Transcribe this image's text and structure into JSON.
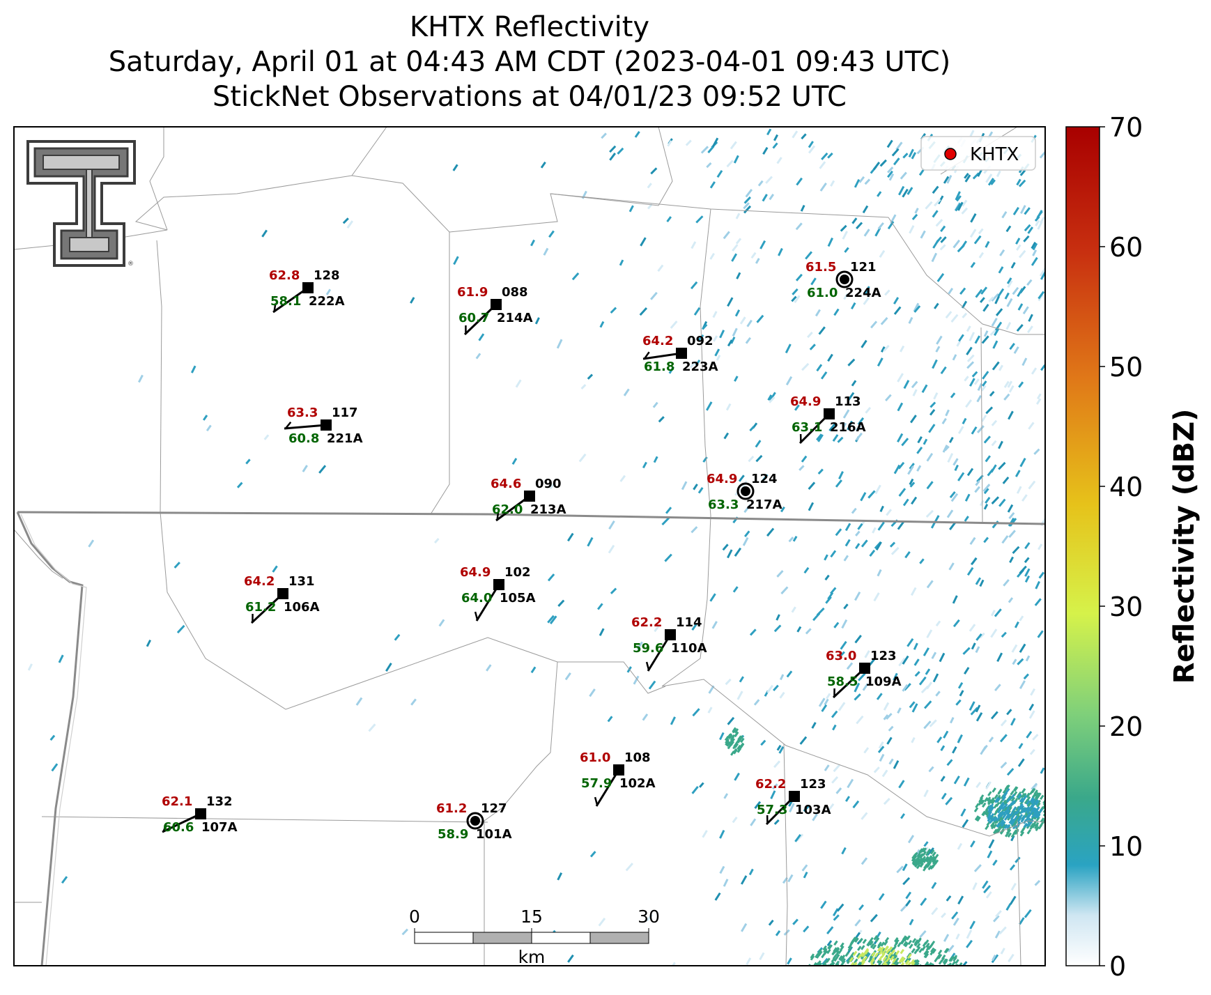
{
  "title": {
    "line1": "KHTX Reflectivity",
    "line2": "Saturday, April 01 at 04:43 AM CDT (2023-04-01 09:43 UTC)",
    "line3": "StickNet Observations at 04/01/23 09:52 UTC"
  },
  "legend": {
    "label": "KHTX",
    "marker_color": "#e00000"
  },
  "colorbar": {
    "label": "Reflectivity (dBZ)",
    "ticks": [
      "0",
      "10",
      "20",
      "30",
      "40",
      "50",
      "60",
      "70"
    ],
    "range": [
      0,
      70
    ],
    "stops": [
      {
        "offset": 0.0,
        "color": "#ffffff"
      },
      {
        "offset": 0.06,
        "color": "#cfe6f2"
      },
      {
        "offset": 0.12,
        "color": "#2aa3c2"
      },
      {
        "offset": 0.2,
        "color": "#3aa88a"
      },
      {
        "offset": 0.3,
        "color": "#7fd07a"
      },
      {
        "offset": 0.42,
        "color": "#d6f24a"
      },
      {
        "offset": 0.55,
        "color": "#e6c21a"
      },
      {
        "offset": 0.7,
        "color": "#e07818"
      },
      {
        "offset": 0.85,
        "color": "#c83010"
      },
      {
        "offset": 1.0,
        "color": "#a80000"
      }
    ]
  },
  "scalebar": {
    "ticks": [
      "0",
      "15",
      "30"
    ],
    "unit": "km"
  },
  "stations": [
    {
      "id": "222A",
      "temp": "62.8",
      "dew": "58.1",
      "dir": "128",
      "square": true
    },
    {
      "id": "214A",
      "temp": "61.9",
      "dew": "60.7",
      "dir": "088",
      "square": true
    },
    {
      "id": "223A",
      "temp": "64.2",
      "dew": "61.8",
      "dir": "092",
      "square": true
    },
    {
      "id": "224A",
      "temp": "61.5",
      "dew": "61.0",
      "dir": "121",
      "square": false
    },
    {
      "id": "221A",
      "temp": "63.3",
      "dew": "60.8",
      "dir": "117",
      "square": true
    },
    {
      "id": "216A",
      "temp": "64.9",
      "dew": "63.1",
      "dir": "113",
      "square": true
    },
    {
      "id": "213A",
      "temp": "64.6",
      "dew": "62.0",
      "dir": "090",
      "square": true
    },
    {
      "id": "217A",
      "temp": "64.9",
      "dew": "63.3",
      "dir": "124",
      "square": false
    },
    {
      "id": "106A",
      "temp": "64.2",
      "dew": "61.2",
      "dir": "131",
      "square": true
    },
    {
      "id": "105A",
      "temp": "64.9",
      "dew": "64.0",
      "dir": "102",
      "square": true
    },
    {
      "id": "110A",
      "temp": "62.2",
      "dew": "59.6",
      "dir": "114",
      "square": true
    },
    {
      "id": "109A",
      "temp": "63.0",
      "dew": "58.5",
      "dir": "123",
      "square": true
    },
    {
      "id": "102A",
      "temp": "61.0",
      "dew": "57.9",
      "dir": "108",
      "square": true
    },
    {
      "id": "103A",
      "temp": "62.2",
      "dew": "57.3",
      "dir": "123",
      "square": true
    },
    {
      "id": "107A",
      "temp": "62.1",
      "dew": "60.6",
      "dir": "132",
      "square": true
    },
    {
      "id": "101A",
      "temp": "61.2",
      "dew": "58.9",
      "dir": "127",
      "square": false
    }
  ],
  "colors": {
    "temp": "#b00000",
    "dew": "#006400",
    "radar_light": "#9fcfe6",
    "radar_main": "#2e9fc0",
    "radar_strong": "#3aa88a"
  }
}
